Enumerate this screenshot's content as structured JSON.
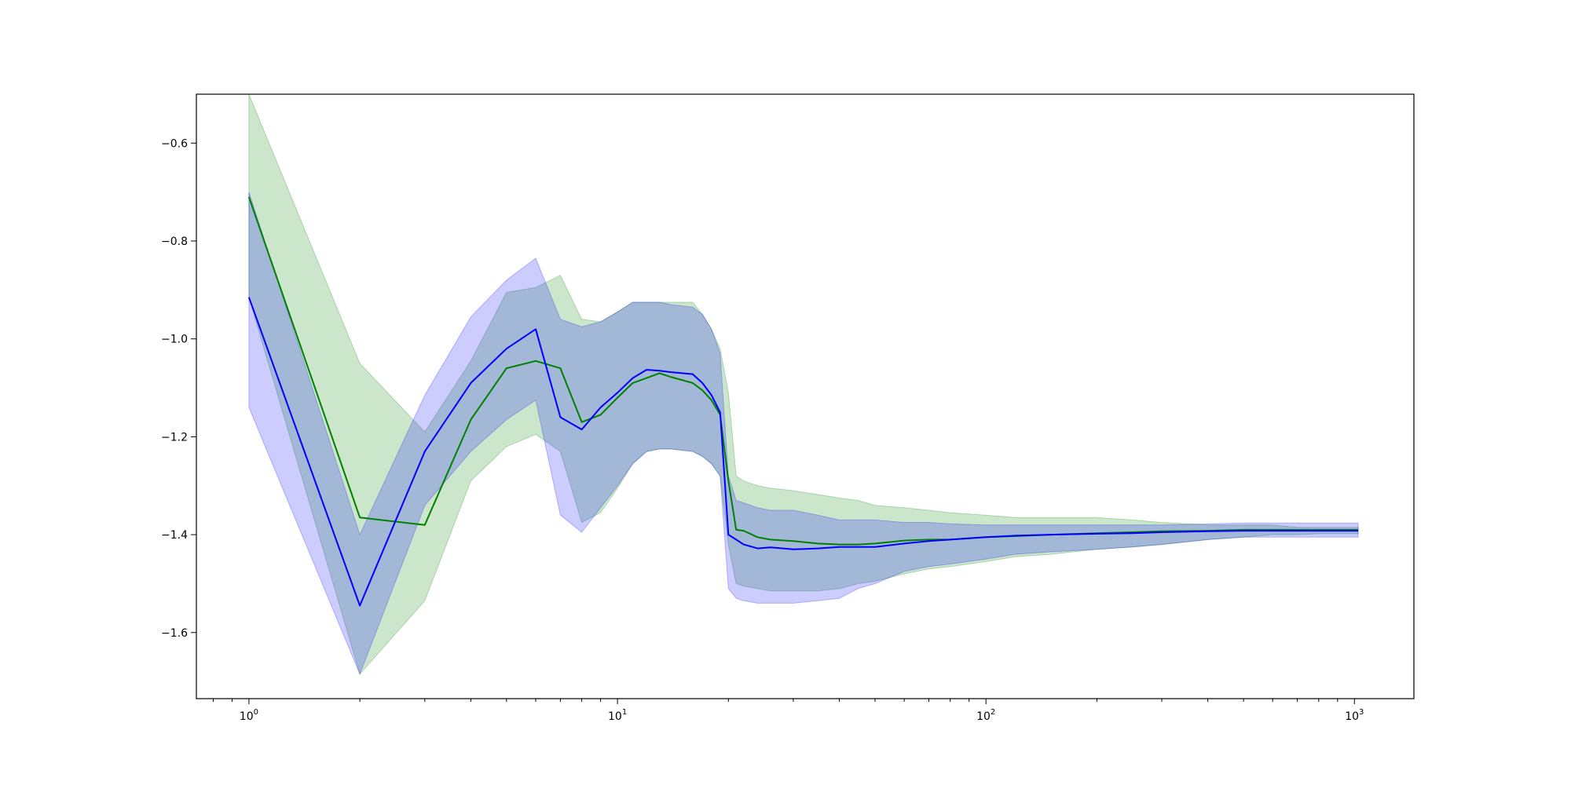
{
  "chart_data": {
    "type": "line",
    "title": "",
    "xlabel": "",
    "ylabel": "",
    "x_scale": "log",
    "xlim": [
      0.72,
      1450
    ],
    "ylim": [
      -1.735,
      -0.5
    ],
    "grid": false,
    "legend": "none",
    "x_ticks": [
      {
        "value": 1,
        "base": "10",
        "exp": "0"
      },
      {
        "value": 10,
        "base": "10",
        "exp": "1"
      },
      {
        "value": 100,
        "base": "10",
        "exp": "2"
      },
      {
        "value": 1000,
        "base": "10",
        "exp": "3"
      }
    ],
    "y_ticks": [
      {
        "value": -0.6,
        "label": "−0.6"
      },
      {
        "value": -0.8,
        "label": "−0.8"
      },
      {
        "value": -1.0,
        "label": "−1.0"
      },
      {
        "value": -1.2,
        "label": "−1.2"
      },
      {
        "value": -1.4,
        "label": "−1.4"
      },
      {
        "value": -1.6,
        "label": "−1.6"
      }
    ],
    "x": [
      1,
      2,
      3,
      4,
      5,
      6,
      7,
      8,
      9,
      10,
      11,
      12,
      13,
      14,
      16,
      17,
      18,
      19,
      20,
      21,
      22,
      24,
      26,
      30,
      35,
      40,
      45,
      50,
      60,
      70,
      80,
      100,
      120,
      150,
      200,
      250,
      300,
      400,
      500,
      600,
      700,
      800,
      900,
      1024
    ],
    "series": [
      {
        "color": "#008000",
        "band_color": "#008000",
        "band_opacity": 0.2,
        "values": [
          -0.71,
          -1.365,
          -1.38,
          -1.165,
          -1.06,
          -1.045,
          -1.06,
          -1.17,
          -1.155,
          -1.12,
          -1.09,
          -1.08,
          -1.07,
          -1.078,
          -1.09,
          -1.105,
          -1.125,
          -1.155,
          -1.29,
          -1.39,
          -1.392,
          -1.405,
          -1.41,
          -1.413,
          -1.418,
          -1.42,
          -1.42,
          -1.418,
          -1.412,
          -1.41,
          -1.41,
          -1.405,
          -1.403,
          -1.4,
          -1.397,
          -1.395,
          -1.393,
          -1.392,
          -1.39,
          -1.39,
          -1.39,
          -1.39,
          -1.39,
          -1.39
        ],
        "upper": [
          -0.5,
          -1.05,
          -1.19,
          -1.045,
          -0.905,
          -0.895,
          -0.87,
          -0.96,
          -0.965,
          -0.945,
          -0.925,
          -0.925,
          -0.925,
          -0.925,
          -0.925,
          -0.95,
          -0.98,
          -1.02,
          -1.11,
          -1.28,
          -1.29,
          -1.3,
          -1.305,
          -1.31,
          -1.318,
          -1.325,
          -1.33,
          -1.34,
          -1.345,
          -1.35,
          -1.355,
          -1.36,
          -1.365,
          -1.365,
          -1.365,
          -1.37,
          -1.375,
          -1.38,
          -1.38,
          -1.38,
          -1.385,
          -1.385,
          -1.385,
          -1.385
        ],
        "lower": [
          -0.915,
          -1.685,
          -1.535,
          -1.29,
          -1.22,
          -1.195,
          -1.23,
          -1.375,
          -1.355,
          -1.305,
          -1.255,
          -1.23,
          -1.225,
          -1.225,
          -1.23,
          -1.24,
          -1.255,
          -1.28,
          -1.42,
          -1.5,
          -1.505,
          -1.51,
          -1.515,
          -1.515,
          -1.515,
          -1.51,
          -1.5,
          -1.495,
          -1.48,
          -1.47,
          -1.465,
          -1.455,
          -1.445,
          -1.44,
          -1.43,
          -1.425,
          -1.42,
          -1.41,
          -1.405,
          -1.4,
          -1.4,
          -1.398,
          -1.398,
          -1.398
        ]
      },
      {
        "color": "#0000ff",
        "band_color": "#0000ff",
        "band_opacity": 0.2,
        "values": [
          -0.915,
          -1.545,
          -1.23,
          -1.09,
          -1.02,
          -0.98,
          -1.16,
          -1.185,
          -1.14,
          -1.11,
          -1.08,
          -1.063,
          -1.065,
          -1.068,
          -1.072,
          -1.09,
          -1.115,
          -1.15,
          -1.4,
          -1.41,
          -1.42,
          -1.428,
          -1.426,
          -1.43,
          -1.428,
          -1.425,
          -1.425,
          -1.425,
          -1.418,
          -1.413,
          -1.41,
          -1.405,
          -1.402,
          -1.4,
          -1.398,
          -1.397,
          -1.395,
          -1.393,
          -1.392,
          -1.392,
          -1.392,
          -1.392,
          -1.392,
          -1.392
        ],
        "upper": [
          -0.7,
          -1.4,
          -1.115,
          -0.955,
          -0.88,
          -0.835,
          -0.96,
          -0.975,
          -0.965,
          -0.945,
          -0.925,
          -0.925,
          -0.925,
          -0.93,
          -0.935,
          -0.95,
          -0.98,
          -1.03,
          -1.28,
          -1.33,
          -1.335,
          -1.345,
          -1.35,
          -1.35,
          -1.36,
          -1.37,
          -1.37,
          -1.37,
          -1.375,
          -1.375,
          -1.378,
          -1.38,
          -1.38,
          -1.38,
          -1.38,
          -1.38,
          -1.38,
          -1.378,
          -1.376,
          -1.376,
          -1.376,
          -1.376,
          -1.376,
          -1.376
        ],
        "lower": [
          -1.14,
          -1.685,
          -1.34,
          -1.23,
          -1.165,
          -1.125,
          -1.36,
          -1.395,
          -1.345,
          -1.3,
          -1.255,
          -1.23,
          -1.225,
          -1.225,
          -1.23,
          -1.24,
          -1.255,
          -1.28,
          -1.51,
          -1.53,
          -1.535,
          -1.54,
          -1.54,
          -1.54,
          -1.535,
          -1.53,
          -1.51,
          -1.5,
          -1.475,
          -1.465,
          -1.46,
          -1.45,
          -1.44,
          -1.435,
          -1.43,
          -1.425,
          -1.42,
          -1.41,
          -1.405,
          -1.405,
          -1.405,
          -1.405,
          -1.405,
          -1.405
        ]
      }
    ]
  }
}
